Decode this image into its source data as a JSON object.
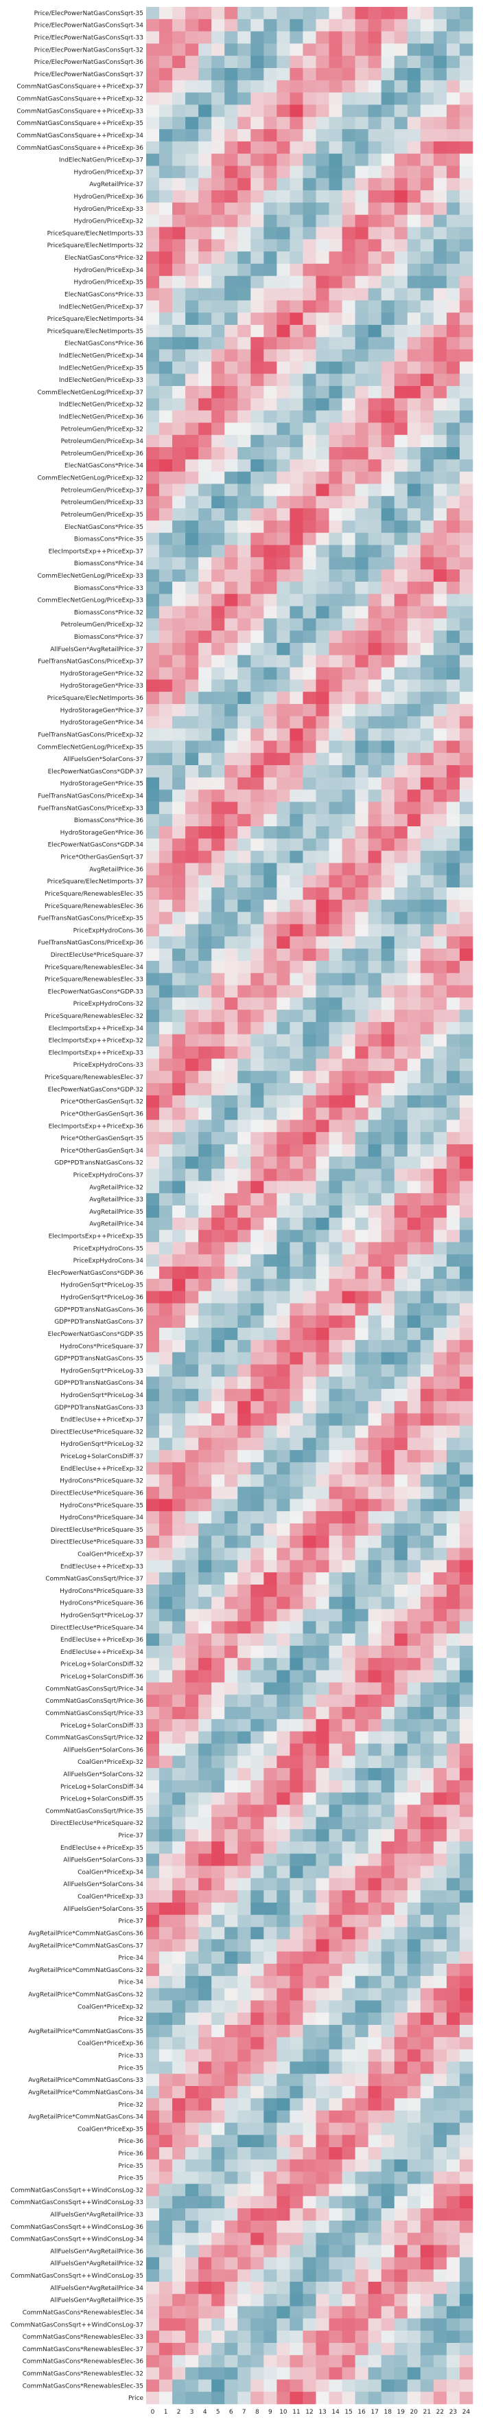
{
  "chart_data": {
    "type": "heatmap",
    "title": "",
    "xlabel": "",
    "ylabel": "",
    "columns": [
      0,
      1,
      2,
      3,
      4,
      5,
      6,
      7,
      8,
      9,
      10,
      11,
      12,
      13,
      14,
      15,
      16,
      17,
      18,
      19,
      20,
      21,
      22,
      23,
      24
    ],
    "colormap": {
      "negative": "#4b8fa6",
      "neutral": "#f2f2f2",
      "positive": "#e23a53"
    },
    "value_range": [
      -1,
      1
    ],
    "rows": [
      "Price/ElecPowerNatGasConsSqrt-35",
      "Price/ElecPowerNatGasConsSqrt-34",
      "Price/ElecPowerNatGasConsSqrt-33",
      "Price/ElecPowerNatGasConsSqrt-32",
      "Price/ElecPowerNatGasConsSqrt-36",
      "Price/ElecPowerNatGasConsSqrt-37",
      "CommNatGasConsSquare++PriceExp-37",
      "CommNatGasConsSquare++PriceExp-32",
      "CommNatGasConsSquare++PriceExp-33",
      "CommNatGasConsSquare++PriceExp-35",
      "CommNatGasConsSquare++PriceExp-34",
      "CommNatGasConsSquare++PriceExp-36",
      "IndElecNatGen/PriceExp-37",
      "HydroGen/PriceExp-37",
      "AvgRetailPrice-37",
      "HydroGen/PriceExp-36",
      "HydroGen/PriceExp-33",
      "HydroGen/PriceExp-32",
      "PriceSquare/ElecNetImports-33",
      "PriceSquare/ElecNetImports-32",
      "ElecNatGasCons*Price-32",
      "HydroGen/PriceExp-34",
      "HydroGen/PriceExp-35",
      "ElecNatGasCons*Price-33",
      "IndElecNetGen/PriceExp-37",
      "PriceSquare/ElecNetImports-34",
      "PriceSquare/ElecNetImports-35",
      "ElecNatGasCons*Price-36",
      "IndElecNetGen/PriceExp-34",
      "IndElecNetGen/PriceExp-35",
      "IndElecNetGen/PriceExp-33",
      "CommElecNetGenLog/PriceExp-37",
      "IndElecNetGen/PriceExp-32",
      "IndElecNetGen/PriceExp-36",
      "PetroleumGen/PriceExp-32",
      "PetroleumGen/PriceExp-34",
      "PetroleumGen/PriceExp-36",
      "ElecNatGasCons*Price-34",
      "CommElecNetGenLog/PriceExp-32",
      "PetroleumGen/PriceExp-37",
      "PetroleumGen/PriceExp-33",
      "PetroleumGen/PriceExp-35",
      "ElecNatGasCons*Price-35",
      "BiomassCons*Price-35",
      "ElecImportsExp++PriceExp-37",
      "BiomassCons*Price-34",
      "CommElecNetGenLog/PriceExp-33",
      "BiomassCons*Price-33",
      "CommElecNetGenLog/PriceExp-33",
      "BiomassCons*Price-32",
      "PetroleumGen/PriceExp-32",
      "BiomassCons*Price-37",
      "AllFuelsGen*AvgRetailPrice-37",
      "FuelTransNatGasCons/PriceExp-37",
      "HydroStorageGen*Price-32",
      "HydroStorageGen*Price-33",
      "PriceSquare/ElecNetImports-36",
      "HydroStorageGen*Price-37",
      "HydroStorageGen*Price-34",
      "FuelTransNatGasCons/PriceExp-32",
      "CommElecNetGenLog/PriceExp-35",
      "AllFuelsGen*SolarCons-37",
      "ElecPowerNatGasCons*GDP-37",
      "HydroStorageGen*Price-35",
      "FuelTransNatGasCons/PriceExp-34",
      "FuelTransNatGasCons/PriceExp-33",
      "BiomassCons*Price-36",
      "HydroStorageGen*Price-36",
      "ElecPowerNatGasCons*GDP-34",
      "Price*OtherGasGenSqrt-37",
      "AvgRetailPrice-36",
      "PriceSquare/ElecNetImports-37",
      "PriceSquare/RenewablesElec-35",
      "PriceSquare/RenewablesElec-36",
      "FuelTransNatGasCons/PriceExp-35",
      "PriceExpHydroCons-36",
      "FuelTransNatGasCons/PriceExp-36",
      "DirectElecUse*PriceSquare-37",
      "PriceSquare/RenewablesElec-34",
      "PriceSquare/RenewablesElec-33",
      "ElecPowerNatGasCons*GDP-33",
      "PriceExpHydroCons-32",
      "PriceSquare/RenewablesElec-32",
      "ElecImportsExp++PriceExp-34",
      "ElecImportsExp++PriceExp-32",
      "ElecImportsExp++PriceExp-33",
      "PriceExpHydroCons-33",
      "PriceSquare/RenewablesElec-37",
      "ElecPowerNatGasCons*GDP-32",
      "Price*OtherGasGenSqrt-32",
      "Price*OtherGasGenSqrt-36",
      "ElecImportsExp++PriceExp-36",
      "Price*OtherGasGenSqrt-35",
      "Price*OtherGasGenSqrt-34",
      "GDP*PDTransNatGasCons-32",
      "PriceExpHydroCons-37",
      "AvgRetailPrice-32",
      "AvgRetailPrice-33",
      "AvgRetailPrice-35",
      "AvgRetailPrice-34",
      "ElecImportsExp++PriceExp-35",
      "PriceExpHydroCons-35",
      "PriceExpHydroCons-34",
      "ElecPowerNatGasCons*GDP-36",
      "HydroGenSqrt*PriceLog-35",
      "HydroGenSqrt*PriceLog-36",
      "GDP*PDTransNatGasCons-36",
      "GDP*PDTransNatGasCons-37",
      "ElecPowerNatGasCons*GDP-35",
      "HydroCons*PriceSquare-37",
      "GDP*PDTransNatGasCons-35",
      "HydroGenSqrt*PriceLog-33",
      "GDP*PDTransNatGasCons-34",
      "HydroGenSqrt*PriceLog-34",
      "GDP*PDTransNatGasCons-33",
      "EndElecUse++PriceExp-37",
      "DirectElecUse*PriceSquare-32",
      "HydroGenSqrt*PriceLog-32",
      "PriceLog+SolarConsDiff-37",
      "EndElecUse++PriceExp-32",
      "HydroCons*PriceSquare-32",
      "DirectElecUse*PriceSquare-36",
      "HydroCons*PriceSquare-35",
      "HydroCons*PriceSquare-34",
      "DirectElecUse*PriceSquare-35",
      "DirectElecUse*PriceSquare-33",
      "CoalGen*PriceExp-37",
      "EndElecUse++PriceExp-33",
      "CommNatGasConsSqrt/Price-37",
      "HydroCons*PriceSquare-33",
      "HydroCons*PriceSquare-36",
      "HydroGenSqrt*PriceLog-37",
      "DirectElecUse*PriceSquare-34",
      "EndElecUse++PriceExp-36",
      "EndElecUse++PriceExp-34",
      "PriceLog+SolarConsDiff-32",
      "PriceLog+SolarConsDiff-36",
      "CommNatGasConsSqrt/Price-34",
      "CommNatGasConsSqrt/Price-36",
      "CommNatGasConsSqrt/Price-33",
      "PriceLog+SolarConsDiff-33",
      "CommNatGasConsSqrt/Price-32",
      "AllFuelsGen*SolarCons-36",
      "CoalGen*PriceExp-32",
      "AllFuelsGen*SolarCons-32",
      "PriceLog+SolarConsDiff-34",
      "PriceLog+SolarConsDiff-35",
      "CommNatGasConsSqrt/Price-35",
      "DirectElecUse*PriceSquare-32",
      "Price-37",
      "EndElecUse++PriceExp-35",
      "AllFuelsGen*SolarCons-33",
      "CoalGen*PriceExp-34",
      "AllFuelsGen*SolarCons-34",
      "CoalGen*PriceExp-33",
      "AllFuelsGen*SolarCons-35",
      "Price-37",
      "AvgRetailPrice*CommNatGasCons-36",
      "AvgRetailPrice*CommNatGasCons-37",
      "Price-34",
      "AvgRetailPrice*CommNatGasCons-32",
      "Price-34",
      "AvgRetailPrice*CommNatGasCons-32",
      "CoalGen*PriceExp-32",
      "Price-32",
      "AvgRetailPrice*CommNatGasCons-35",
      "CoalGen*PriceExp-36",
      "Price-33",
      "Price-35",
      "AvgRetailPrice*CommNatGasCons-33",
      "AvgRetailPrice*CommNatGasCons-34",
      "Price-32",
      "AvgRetailPrice*CommNatGasCons-34",
      "CoalGen*PriceExp-35",
      "Price-36",
      "Price-36",
      "Price-35",
      "Price-35",
      "CommNatGasConsSqrt++WindConsLog-32",
      "CommNatGasConsSqrt++WindConsLog-33",
      "AllFuelsGen*AvgRetailPrice-33",
      "CommNatGasConsSqrt++WindConsLog-36",
      "CommNatGasConsSqrt++WindConsLog-34",
      "AllFuelsGen*AvgRetailPrice-36",
      "AllFuelsGen*AvgRetailPrice-32",
      "CommNatGasConsSqrt++WindConsLog-35",
      "AllFuelsGen*AvgRetailPrice-34",
      "AllFuelsGen*AvgRetailPrice-35",
      "CommNatGasCons*RenewablesElec-34",
      "CommNatGasConsSqrt++WindConsLog-37",
      "CommNatGasCons*RenewablesElec-33",
      "CommNatGasCons*RenewablesElec-37",
      "CommNatGasCons*RenewablesElec-36",
      "CommNatGasCons*RenewablesElec-32",
      "CommNatGasCons*RenewablesElec-35",
      "Price"
    ]
  }
}
